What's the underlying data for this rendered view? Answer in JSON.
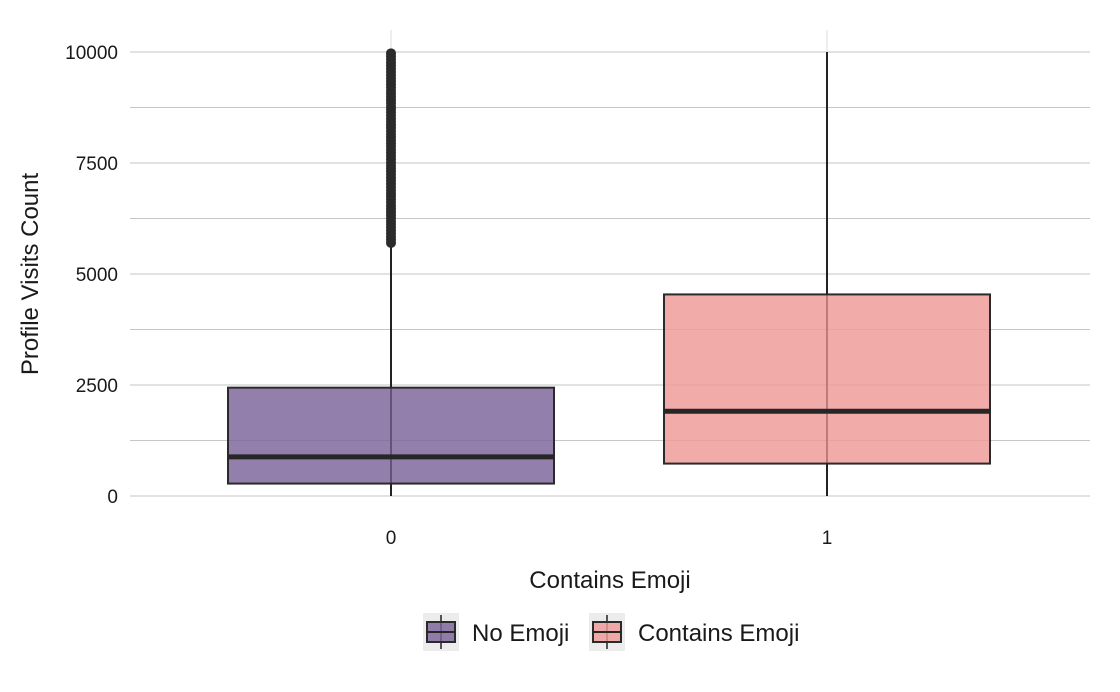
{
  "chart_data": {
    "type": "boxplot",
    "xlabel": "Contains Emoji",
    "ylabel": "Profile Visits Count",
    "categories": [
      "0",
      "1"
    ],
    "ylim": [
      0,
      10400
    ],
    "yticks": [
      0,
      2500,
      5000,
      7500,
      10000
    ],
    "grid": true,
    "legend_position": "bottom",
    "series": [
      {
        "name": "No Emoji",
        "category": "0",
        "color": "#7b6399",
        "q1": 280,
        "median": 880,
        "q3": 2440,
        "whisker_low": 0,
        "whisker_high": 5680,
        "outliers_range": [
          5700,
          10000
        ]
      },
      {
        "name": "Contains Emoji",
        "category": "1",
        "color": "#ee9a97",
        "q1": 730,
        "median": 1910,
        "q3": 4540,
        "whisker_low": 0,
        "whisker_high": 10000,
        "outliers_range": null
      }
    ]
  }
}
